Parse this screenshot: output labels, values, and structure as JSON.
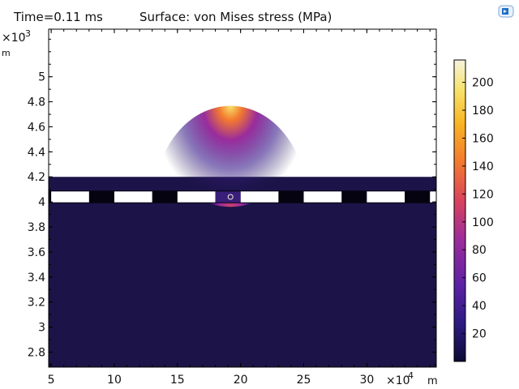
{
  "header": {
    "time_label": "Time=0.11 ms",
    "surface_label": "Surface: von Mises stress (MPa)",
    "app_icon": "comsol-logo-icon"
  },
  "colors": {
    "background_field": "#1c1448",
    "hole_fill": "#ffffff",
    "separator": "#05030f",
    "colormap": [
      "#0d0b34",
      "#2a1a7e",
      "#5b21a5",
      "#9a2c9c",
      "#d8425e",
      "#f3792f",
      "#f9b423",
      "#f7e36a",
      "#f6f2dd"
    ]
  },
  "chart_data": {
    "type": "heatmap",
    "title": "Surface: von Mises stress (MPa)",
    "subtitle": "Time=0.11 ms",
    "x_axis": {
      "exponent_label": "×10",
      "exponent": "-4",
      "unit": "m",
      "ticks": [
        5,
        10,
        15,
        20,
        25,
        30
      ],
      "range": [
        4.8,
        35.5
      ]
    },
    "y_axis": {
      "exponent_label": "×10",
      "exponent": "-3",
      "unit": "m",
      "ticks": [
        2.8,
        3,
        3.2,
        3.4,
        3.6,
        3.8,
        4,
        4.2,
        4.4,
        4.6,
        4.8,
        5
      ],
      "tick_labels": [
        "2.8",
        "3",
        "3.2",
        "3.4",
        "3.6",
        "3.8",
        "4",
        "4.2",
        "4.4",
        "4.6",
        "4.8",
        "5"
      ],
      "range": [
        2.68,
        5.38
      ]
    },
    "domain": {
      "x_range": [
        4.8,
        35.5
      ],
      "y_range": [
        2.68,
        4.2
      ]
    },
    "strip": {
      "y_range": [
        3.99,
        4.09
      ]
    },
    "holes_x": [
      [
        5.0,
        8.0
      ],
      [
        10.0,
        13.0
      ],
      [
        15.0,
        18.0
      ],
      [
        20.0,
        23.0
      ],
      [
        25.0,
        28.0
      ],
      [
        30.0,
        33.0
      ],
      [
        35.0,
        35.5
      ]
    ],
    "stress_peak": {
      "x": 19.2,
      "y": 4.04,
      "value_mpa": 215
    },
    "colorbar": {
      "range": [
        0,
        216
      ],
      "ticks": [
        20,
        40,
        60,
        80,
        100,
        120,
        140,
        160,
        180,
        200
      ],
      "tick_labels": [
        "20",
        "40",
        "60",
        "80",
        "100",
        "120",
        "140",
        "160",
        "180",
        "200"
      ]
    }
  }
}
